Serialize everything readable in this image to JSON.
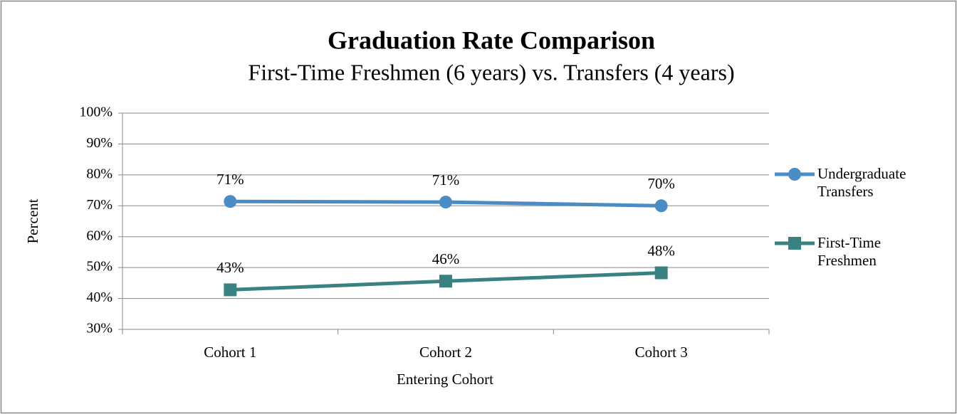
{
  "chart_data": {
    "type": "line",
    "title": "Graduation Rate Comparison",
    "subtitle": "First-Time Freshmen (6 years) vs. Transfers (4 years)",
    "x_label": "Entering Cohort",
    "y_label": "Percent",
    "categories": [
      "Cohort 1",
      "Cohort 2",
      "Cohort 3"
    ],
    "series": [
      {
        "name": "Undergraduate Transfers",
        "color": "#4a8cc4",
        "marker": "circle",
        "values": [
          71.4,
          71.2,
          70.0
        ],
        "value_labels": [
          "71%",
          "71%",
          "70%"
        ]
      },
      {
        "name": "First-Time Freshmen",
        "color": "#3a8282",
        "marker": "square",
        "values": [
          42.8,
          45.6,
          48.3
        ],
        "value_labels": [
          "43%",
          "46%",
          "48%"
        ]
      }
    ],
    "ylim": [
      30,
      100
    ],
    "yticks": [
      {
        "value": 30,
        "label": "30%"
      },
      {
        "value": 40,
        "label": "40%"
      },
      {
        "value": 50,
        "label": "50%"
      },
      {
        "value": 60,
        "label": "60%"
      },
      {
        "value": 70,
        "label": "70%"
      },
      {
        "value": 80,
        "label": "80%"
      },
      {
        "value": 90,
        "label": "90%"
      },
      {
        "value": 100,
        "label": "100%"
      }
    ],
    "grid": true,
    "legend": "right"
  }
}
